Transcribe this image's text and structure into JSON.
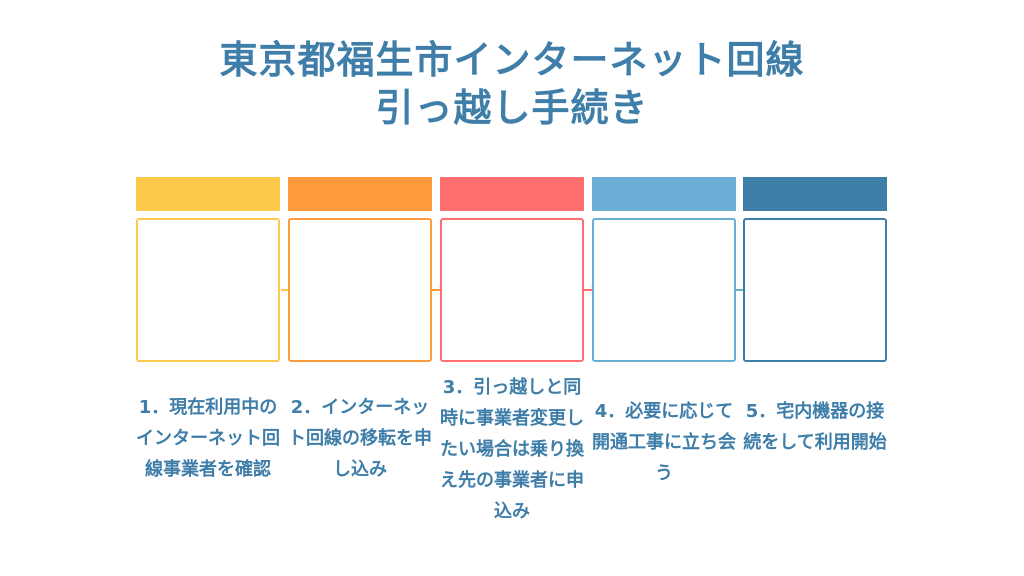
{
  "title": {
    "line1": "東京都福生市インターネット回線",
    "line2": "引っ越し手続き"
  },
  "colors": {
    "title": "#3f7ea8",
    "step1": "#ffc94d",
    "step2": "#ff9a3d",
    "step3": "#ff6f6f",
    "step4": "#6aaed6",
    "step5": "#3f7ea8"
  },
  "steps": [
    {
      "label": "1．現在利用中のインターネット回線事業者を確認"
    },
    {
      "label": "2．インターネット回線の移転を申し込み"
    },
    {
      "label": "3．引っ越しと同時に事業者変更したい場合は乗り換え先の事業者に申込み"
    },
    {
      "label": "4．必要に応じて開通工事に立ち会う"
    },
    {
      "label": "5．宅内機器の接続をして利用開始"
    }
  ]
}
